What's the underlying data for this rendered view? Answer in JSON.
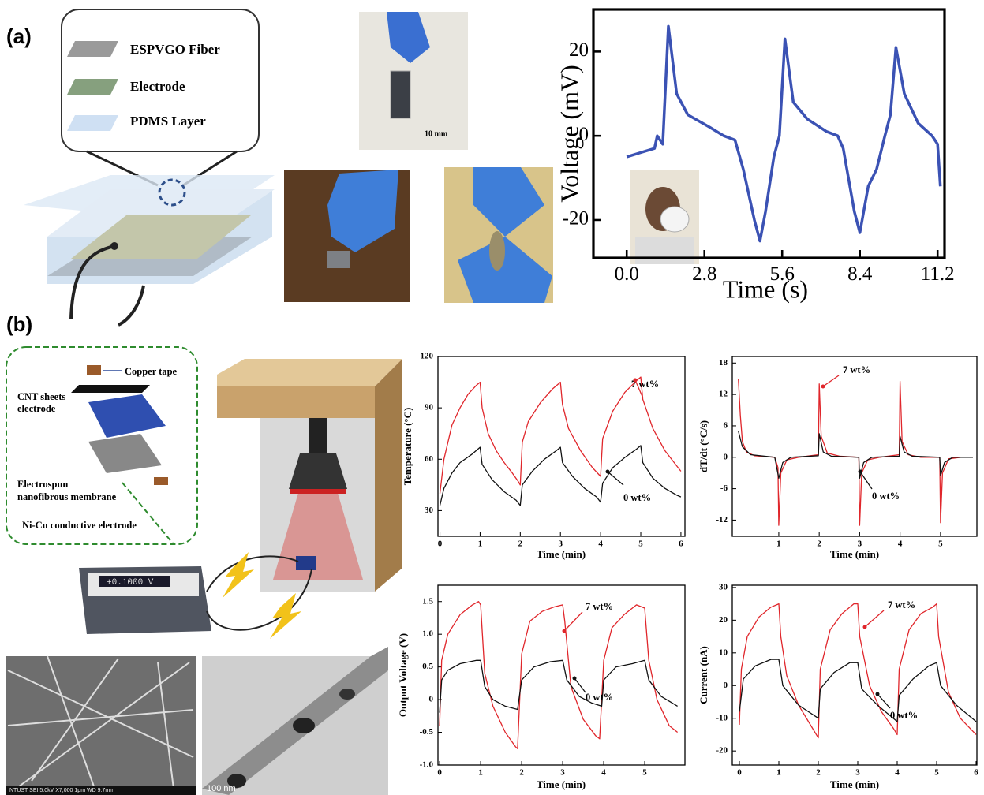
{
  "panel_labels": [
    "(a)",
    "(b)"
  ],
  "device_a": {
    "layers": [
      "ESPVGO Fiber",
      "Electrode",
      "PDMS Layer"
    ],
    "scale_bar": "10 mm"
  },
  "device_b": {
    "copper": "Copper tape",
    "cnt": [
      "CNT sheets",
      "electrode"
    ],
    "membrane": [
      "Electrospun",
      "nanofibrous membrane"
    ],
    "nicu": "Ni-Cu conductive electrode",
    "meter_display": "+0.1000 V",
    "sem_caption": "NTUST   SEI   5.0kV   X7,000   1μm   WD 9.7mm",
    "tem_scale": "100 nm"
  },
  "chart_data": [
    {
      "type": "line",
      "xlabel": "Time (s)",
      "ylabel": "Voltage (mV)",
      "color": "#3b52b4",
      "x": [
        0,
        0.5,
        1.0,
        1.1,
        1.3,
        1.5,
        1.8,
        2.2,
        3.0,
        3.5,
        3.9,
        4.2,
        4.6,
        4.8,
        5.0,
        5.3,
        5.5,
        5.7,
        6.0,
        6.5,
        7.2,
        7.6,
        7.8,
        8.2,
        8.4,
        8.7,
        9.0,
        9.3,
        9.5,
        9.7,
        10.0,
        10.5,
        11.0,
        11.2,
        11.3
      ],
      "values": [
        -5,
        -4,
        -3,
        0,
        -2,
        26,
        10,
        5,
        2,
        0,
        -1,
        -8,
        -20,
        -25,
        -18,
        -5,
        0,
        23,
        8,
        4,
        1,
        0,
        -3,
        -18,
        -23,
        -12,
        -8,
        0,
        5,
        21,
        10,
        3,
        0,
        -2,
        -12
      ],
      "xlim": [
        -1.2,
        11.45
      ],
      "ylim": [
        -29,
        30
      ],
      "xticks": [
        {
          "value": 0,
          "label": "0.0"
        },
        2.8,
        5.6,
        8.4,
        11.2
      ],
      "yticks": [
        -20,
        0,
        20
      ]
    },
    {
      "type": "line",
      "xlabel": "Time (min)",
      "ylabel": "Temperature (°C)",
      "xlim": [
        -0.05,
        6.1
      ],
      "ylim": [
        15,
        120
      ],
      "xticks": [
        0,
        1,
        2,
        3,
        4,
        5,
        6
      ],
      "yticks": [
        30,
        60,
        90,
        120
      ],
      "series": [
        {
          "name": "7 wt%",
          "color": "#e0262b",
          "x": [
            0,
            0.1,
            0.3,
            0.5,
            0.7,
            0.9,
            1.0,
            1.05,
            1.2,
            1.4,
            1.6,
            1.8,
            1.95,
            2.0,
            2.05,
            2.2,
            2.5,
            2.8,
            3.0,
            3.05,
            3.2,
            3.5,
            3.8,
            4.0,
            4.05,
            4.3,
            4.6,
            4.9,
            5.0,
            5.05,
            5.3,
            5.6,
            5.9,
            6.0
          ],
          "values": [
            40,
            60,
            80,
            90,
            98,
            103,
            105,
            90,
            75,
            65,
            58,
            52,
            47,
            45,
            70,
            82,
            93,
            101,
            105,
            92,
            78,
            65,
            55,
            50,
            72,
            88,
            99,
            106,
            108,
            95,
            78,
            65,
            56,
            53
          ]
        },
        {
          "name": "0 wt%",
          "color": "#111111",
          "x": [
            0,
            0.1,
            0.3,
            0.5,
            0.8,
            0.95,
            1.0,
            1.05,
            1.3,
            1.6,
            1.9,
            2.0,
            2.05,
            2.3,
            2.6,
            2.9,
            3.0,
            3.05,
            3.3,
            3.6,
            3.9,
            4.0,
            4.05,
            4.3,
            4.6,
            4.9,
            5.0,
            5.05,
            5.3,
            5.6,
            5.9,
            6.0
          ],
          "values": [
            33,
            43,
            52,
            58,
            63,
            66,
            67,
            57,
            48,
            41,
            36,
            33,
            45,
            53,
            60,
            65,
            67,
            58,
            50,
            43,
            38,
            35,
            46,
            55,
            61,
            66,
            68,
            58,
            49,
            43,
            39,
            38
          ]
        }
      ]
    },
    {
      "type": "line",
      "xlabel": "Time (min)",
      "ylabel": "dT/dt (°C/s)",
      "xlim": [
        -0.15,
        5.9
      ],
      "ylim": [
        -15.1,
        19.25
      ],
      "xticks": [
        1,
        2,
        3,
        4,
        5
      ],
      "yticks": [
        -12,
        -6,
        0,
        6,
        12,
        18
      ],
      "series": [
        {
          "name": "7 wt%",
          "color": "#e0262b",
          "x": [
            0,
            0.05,
            0.1,
            0.2,
            0.4,
            0.9,
            0.98,
            1.0,
            1.05,
            1.2,
            1.5,
            1.98,
            2.0,
            2.05,
            2.2,
            2.5,
            2.98,
            3.0,
            3.05,
            3.2,
            3.5,
            3.98,
            4.0,
            4.05,
            4.2,
            4.5,
            4.98,
            5.0,
            5.05,
            5.2,
            5.5,
            5.8
          ],
          "values": [
            15,
            8,
            3,
            1,
            0.3,
            0,
            -2,
            -13,
            -3,
            -0.5,
            0,
            0.5,
            14,
            4,
            0.8,
            0.2,
            0,
            -13,
            -3,
            -0.5,
            0,
            0.5,
            14.5,
            3,
            0.5,
            0,
            0,
            -12.5,
            -3,
            -0.3,
            0,
            0
          ]
        },
        {
          "name": "0 wt%",
          "color": "#111111",
          "x": [
            0,
            0.1,
            0.3,
            0.9,
            1.0,
            1.1,
            1.3,
            1.98,
            2.0,
            2.1,
            2.3,
            2.98,
            3.0,
            3.1,
            3.3,
            3.98,
            4.0,
            4.1,
            4.3,
            4.98,
            5.0,
            5.1,
            5.3,
            5.8
          ],
          "values": [
            5,
            2,
            0.5,
            0,
            -4,
            -1,
            0,
            0.3,
            4.5,
            1,
            0.2,
            0,
            -4,
            -1,
            0,
            0.2,
            4,
            1,
            0.2,
            0,
            -3.5,
            -1,
            0,
            0
          ]
        }
      ]
    },
    {
      "type": "line",
      "xlabel": "Time (min)",
      "ylabel": "Output Voltage (V)",
      "xlim": [
        -0.04,
        5.98
      ],
      "ylim": [
        -1.0,
        1.75
      ],
      "xticks": [
        0,
        1,
        2,
        3,
        4,
        5
      ],
      "yticks": [
        {
          "value": -1,
          "label": "-1.0"
        },
        -0.5,
        0,
        0.5,
        {
          "value": 1,
          "label": "1.0"
        },
        1.5
      ],
      "series": [
        {
          "name": "7 wt%",
          "color": "#e0262b",
          "x": [
            0,
            0.05,
            0.2,
            0.5,
            0.8,
            0.95,
            1.0,
            1.1,
            1.3,
            1.6,
            1.85,
            1.9,
            2.0,
            2.2,
            2.5,
            2.8,
            3.0,
            3.05,
            3.2,
            3.5,
            3.8,
            3.9,
            4.0,
            4.2,
            4.5,
            4.8,
            5.0,
            5.1,
            5.3,
            5.6,
            5.8
          ],
          "values": [
            -0.4,
            0.6,
            1.0,
            1.3,
            1.45,
            1.5,
            1.45,
            0.4,
            -0.1,
            -0.5,
            -0.72,
            -0.75,
            0.7,
            1.2,
            1.35,
            1.42,
            1.45,
            1.2,
            0.2,
            -0.3,
            -0.55,
            -0.6,
            0.6,
            1.1,
            1.3,
            1.45,
            1.4,
            0.6,
            0.0,
            -0.4,
            -0.5
          ]
        },
        {
          "name": "0 wt%",
          "color": "#111111",
          "x": [
            0,
            0.05,
            0.2,
            0.5,
            0.9,
            1.0,
            1.1,
            1.3,
            1.6,
            1.9,
            2.0,
            2.3,
            2.7,
            3.0,
            3.1,
            3.4,
            3.7,
            3.95,
            4.0,
            4.3,
            4.7,
            5.0,
            5.1,
            5.4,
            5.8
          ],
          "values": [
            -0.2,
            0.3,
            0.45,
            0.55,
            0.6,
            0.6,
            0.2,
            0.0,
            -0.1,
            -0.15,
            0.3,
            0.5,
            0.58,
            0.6,
            0.3,
            0.05,
            -0.05,
            -0.1,
            0.3,
            0.5,
            0.55,
            0.6,
            0.3,
            0.05,
            -0.1
          ]
        }
      ]
    },
    {
      "type": "line",
      "xlabel": "Time (min)",
      "ylabel": "Current (nA)",
      "xlim": [
        -0.18,
        6.02
      ],
      "ylim": [
        -24.3,
        30.7
      ],
      "xticks": [
        0,
        1,
        2,
        3,
        4,
        5,
        6
      ],
      "yticks": [
        -20,
        -10,
        0,
        10,
        20,
        30
      ],
      "series": [
        {
          "name": "7 wt%",
          "color": "#e0262b",
          "x": [
            0,
            0.05,
            0.2,
            0.5,
            0.8,
            1.0,
            1.05,
            1.2,
            1.5,
            1.8,
            2.0,
            2.05,
            2.3,
            2.6,
            2.9,
            3.0,
            3.05,
            3.3,
            3.6,
            3.9,
            4.0,
            4.05,
            4.3,
            4.6,
            4.9,
            5.0,
            5.05,
            5.3,
            5.6,
            6.0
          ],
          "values": [
            -12,
            5,
            15,
            21,
            24,
            25,
            15,
            3,
            -6,
            -12,
            -16,
            5,
            17,
            22,
            25,
            25,
            15,
            0,
            -8,
            -13,
            -15,
            5,
            17,
            22,
            24,
            25,
            15,
            -2,
            -10,
            -15
          ]
        },
        {
          "name": "0 wt%",
          "color": "#111111",
          "x": [
            0,
            0.1,
            0.4,
            0.8,
            1.0,
            1.1,
            1.5,
            2.0,
            2.05,
            2.4,
            2.8,
            3.0,
            3.1,
            3.5,
            4.0,
            4.05,
            4.4,
            4.8,
            5.0,
            5.1,
            5.5,
            6.0
          ],
          "values": [
            -8,
            2,
            6,
            8,
            8,
            0,
            -6,
            -10,
            -1,
            4,
            7,
            7,
            -1,
            -6,
            -11,
            -3,
            2,
            6,
            7,
            0,
            -6,
            -11
          ]
        }
      ]
    }
  ]
}
